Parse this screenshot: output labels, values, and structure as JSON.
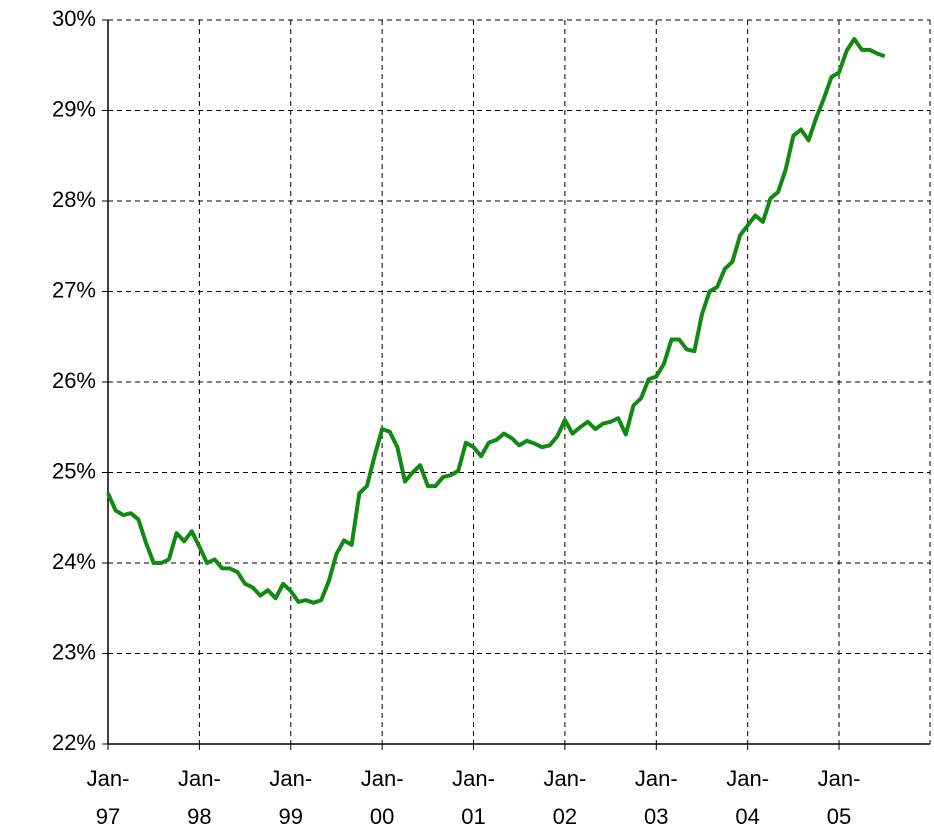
{
  "chart_data": {
    "type": "line",
    "categories": [
      "Jan-97",
      null,
      null,
      null,
      null,
      null,
      null,
      null,
      null,
      null,
      null,
      null,
      "Jan-98",
      null,
      null,
      null,
      null,
      null,
      null,
      null,
      null,
      null,
      null,
      null,
      "Jan-99",
      null,
      null,
      null,
      null,
      null,
      null,
      null,
      null,
      null,
      null,
      null,
      "Jan-00",
      null,
      null,
      null,
      null,
      null,
      null,
      null,
      null,
      null,
      null,
      null,
      "Jan-01",
      null,
      null,
      null,
      null,
      null,
      null,
      null,
      null,
      null,
      null,
      null,
      "Jan-02",
      null,
      null,
      null,
      null,
      null,
      null,
      null,
      null,
      null,
      null,
      null,
      "Jan-03",
      null,
      null,
      null,
      null,
      null,
      null,
      null,
      null,
      null,
      null,
      null,
      "Jan-04",
      null,
      null,
      null,
      null,
      null,
      null,
      null,
      null,
      null,
      null,
      null,
      "Jan-05",
      null,
      null,
      null,
      null,
      null,
      null
    ],
    "series": [
      {
        "color": "#118a11",
        "values": [
          24.77,
          24.58,
          24.53,
          24.55,
          24.48,
          24.22,
          24.0,
          24.0,
          24.04,
          24.33,
          24.24,
          24.35,
          24.18,
          24.0,
          24.04,
          23.94,
          23.94,
          23.9,
          23.77,
          23.73,
          23.64,
          23.7,
          23.61,
          23.77,
          23.69,
          23.57,
          23.59,
          23.56,
          23.59,
          23.8,
          24.1,
          24.25,
          24.2,
          24.77,
          24.85,
          25.18,
          25.48,
          25.45,
          25.28,
          24.9,
          25.0,
          25.08,
          24.85,
          24.85,
          24.95,
          24.97,
          25.02,
          25.33,
          25.28,
          25.18,
          25.33,
          25.36,
          25.43,
          25.38,
          25.3,
          25.35,
          25.32,
          25.28,
          25.3,
          25.4,
          25.58,
          25.43,
          25.5,
          25.56,
          25.48,
          25.54,
          25.56,
          25.6,
          25.42,
          25.74,
          25.82,
          26.03,
          26.06,
          26.2,
          26.47,
          26.47,
          26.36,
          26.34,
          26.75,
          27.0,
          27.05,
          27.25,
          27.33,
          27.62,
          27.73,
          27.84,
          27.77,
          28.03,
          28.1,
          28.35,
          28.72,
          28.79,
          28.67,
          28.92,
          29.13,
          29.37,
          29.42,
          29.66,
          29.79,
          29.67,
          29.67,
          29.63,
          29.6
        ]
      }
    ],
    "ylim": [
      22,
      30
    ],
    "yticks": [
      {
        "value": 22,
        "label": "22%"
      },
      {
        "value": 23,
        "label": "23%"
      },
      {
        "value": 24,
        "label": "24%"
      },
      {
        "value": 25,
        "label": "25%"
      },
      {
        "value": 26,
        "label": "26%"
      },
      {
        "value": 27,
        "label": "27%"
      },
      {
        "value": 28,
        "label": "28%"
      },
      {
        "value": 29,
        "label": "29%"
      },
      {
        "value": 30,
        "label": "30%"
      }
    ],
    "grid": true
  }
}
